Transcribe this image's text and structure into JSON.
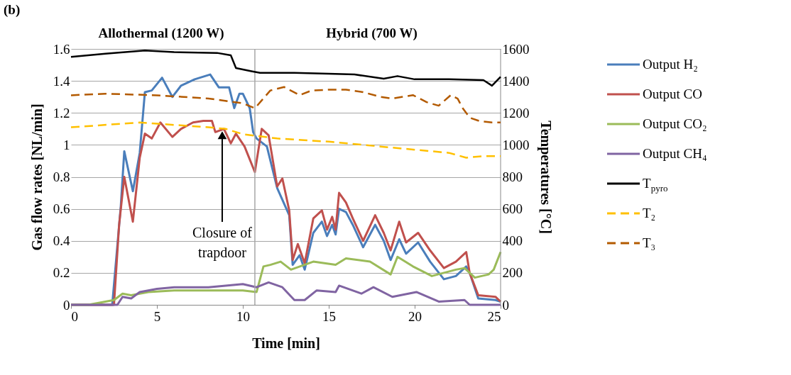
{
  "chart_data": {
    "type": "line",
    "xlabel": "Time [min]",
    "ylabel": "Gas flow rates [NL/min]",
    "y2label": "Temperatures [°C]",
    "xlim": [
      0,
      25
    ],
    "xticks": [
      0,
      5,
      10,
      15,
      20,
      25
    ],
    "ylim": [
      0,
      1.6
    ],
    "yticks": [
      0,
      0.2,
      0.4,
      0.6,
      0.8,
      1,
      1.2,
      1.4,
      1.6
    ],
    "y2lim": [
      0,
      1600
    ],
    "y2ticks": [
      0,
      200,
      400,
      600,
      800,
      1000,
      1200,
      1400,
      1600
    ],
    "grid": "y",
    "legend": "right",
    "marker": "none",
    "annotations": [
      "(b)",
      "Allothermal (1200 W)",
      "Hybrid (700 W)",
      {
        "text": "Closure of\ntrapdoor",
        "x": 8.8,
        "y": 1.08
      }
    ],
    "ref_lines": [
      {
        "axis": "x",
        "value": 10.7,
        "color": "#a6a6a6"
      }
    ],
    "series": [
      {
        "name": "Output H₂",
        "color": "#4a7ebb",
        "line_style": "solid",
        "x": [
          0,
          2.4,
          2.9,
          3.1,
          3.6,
          4.0,
          4.3,
          4.7,
          5.3,
          5.9,
          6.4,
          7.2,
          8.1,
          8.6,
          9.2,
          9.5,
          9.8,
          10.0,
          10.4,
          10.6,
          10.8,
          11.4,
          12.0,
          12.7,
          12.9,
          13.3,
          13.6,
          14.1,
          14.6,
          14.9,
          15.2,
          15.4,
          15.6,
          16.0,
          16.4,
          17.0,
          17.7,
          18.2,
          18.6,
          19.1,
          19.5,
          20.2,
          20.9,
          21.7,
          22.4,
          23.0,
          23.2,
          23.7,
          24.7,
          25
        ],
        "values": [
          0,
          0,
          0.62,
          0.96,
          0.71,
          0.95,
          1.33,
          1.34,
          1.42,
          1.3,
          1.37,
          1.41,
          1.44,
          1.36,
          1.36,
          1.23,
          1.32,
          1.32,
          1.23,
          1.08,
          1.04,
          0.99,
          0.73,
          0.56,
          0.25,
          0.31,
          0.22,
          0.45,
          0.52,
          0.43,
          0.5,
          0.44,
          0.6,
          0.58,
          0.5,
          0.36,
          0.5,
          0.4,
          0.28,
          0.41,
          0.32,
          0.39,
          0.27,
          0.16,
          0.18,
          0.24,
          0.2,
          0.04,
          0.03,
          0.02
        ]
      },
      {
        "name": "Output CO",
        "color": "#c0504d",
        "line_style": "solid",
        "x": [
          0,
          2.5,
          2.8,
          3.1,
          3.6,
          4.0,
          4.3,
          4.7,
          5.2,
          5.9,
          6.4,
          7.1,
          7.7,
          8.2,
          8.4,
          8.9,
          9.3,
          9.6,
          10.1,
          10.7,
          11.1,
          11.5,
          12.0,
          12.3,
          12.7,
          12.9,
          13.2,
          13.6,
          14.1,
          14.6,
          14.9,
          15.2,
          15.4,
          15.6,
          16.0,
          16.4,
          17.0,
          17.7,
          18.2,
          18.6,
          19.1,
          19.5,
          20.2,
          20.9,
          21.7,
          22.4,
          23.0,
          23.2,
          23.7,
          24.7,
          25
        ],
        "values": [
          0,
          0,
          0.5,
          0.8,
          0.52,
          0.92,
          1.07,
          1.04,
          1.14,
          1.05,
          1.1,
          1.14,
          1.15,
          1.15,
          1.08,
          1.1,
          1.01,
          1.07,
          0.99,
          0.83,
          1.1,
          1.06,
          0.74,
          0.79,
          0.59,
          0.28,
          0.38,
          0.26,
          0.54,
          0.59,
          0.47,
          0.55,
          0.47,
          0.7,
          0.64,
          0.54,
          0.4,
          0.56,
          0.45,
          0.34,
          0.52,
          0.39,
          0.45,
          0.34,
          0.23,
          0.27,
          0.33,
          0.2,
          0.06,
          0.05,
          0.02
        ]
      },
      {
        "name": "Output CO₂",
        "color": "#9bbb59",
        "line_style": "solid",
        "x": [
          0,
          1.0,
          1.5,
          2.5,
          3.0,
          3.5,
          4.5,
          6.0,
          8.0,
          10.0,
          10.8,
          11.2,
          11.6,
          12.2,
          12.8,
          14.1,
          15.4,
          16.0,
          17.4,
          18.6,
          19.0,
          19.9,
          21.0,
          22.4,
          22.9,
          23.5,
          24.3,
          24.6,
          25
        ],
        "values": [
          0,
          0,
          0.01,
          0.03,
          0.07,
          0.06,
          0.08,
          0.09,
          0.09,
          0.09,
          0.08,
          0.24,
          0.25,
          0.27,
          0.22,
          0.27,
          0.25,
          0.29,
          0.27,
          0.19,
          0.3,
          0.24,
          0.18,
          0.22,
          0.23,
          0.17,
          0.19,
          0.22,
          0.33
        ]
      },
      {
        "name": "Output CH₄",
        "color": "#8064a2",
        "line_style": "solid",
        "x": [
          0,
          2.7,
          3.0,
          3.5,
          4.0,
          5.0,
          6.0,
          8.0,
          10.0,
          10.8,
          11.5,
          12.3,
          13.0,
          13.6,
          14.3,
          15.4,
          15.6,
          16.9,
          17.6,
          18.7,
          20.1,
          21.4,
          22.9,
          23.2,
          25
        ],
        "values": [
          0,
          0,
          0.05,
          0.04,
          0.08,
          0.1,
          0.11,
          0.11,
          0.13,
          0.11,
          0.14,
          0.11,
          0.03,
          0.03,
          0.09,
          0.08,
          0.12,
          0.07,
          0.11,
          0.05,
          0.08,
          0.02,
          0.03,
          0.0,
          0.0
        ]
      },
      {
        "name": "T$_{pyro}$",
        "color": "#000000",
        "line_style": "solid",
        "axis": "y2",
        "x": [
          0,
          2,
          4.3,
          6,
          8.5,
          9.3,
          9.6,
          10.5,
          11,
          13,
          15,
          16.5,
          18.2,
          19,
          20,
          22,
          24,
          24.5,
          25
        ],
        "values": [
          1550,
          1570,
          1590,
          1580,
          1575,
          1560,
          1480,
          1460,
          1450,
          1450,
          1445,
          1440,
          1414,
          1430,
          1410,
          1410,
          1405,
          1370,
          1425
        ]
      },
      {
        "name": "T₂",
        "color": "#ffc000",
        "line_style": "dashed",
        "axis": "y2",
        "x": [
          0,
          4,
          8,
          9,
          10,
          12,
          15,
          18,
          20,
          22,
          23,
          24,
          25
        ],
        "values": [
          1110,
          1140,
          1110,
          1100,
          1067,
          1040,
          1020,
          990,
          970,
          950,
          920,
          930,
          930
        ]
      },
      {
        "name": "T₃",
        "color": "#b35a00",
        "line_style": "dashed",
        "axis": "y2",
        "x": [
          0,
          2,
          5,
          8,
          10,
          10.7,
          11.6,
          12.4,
          13.3,
          14,
          15,
          16,
          17,
          18,
          18.7,
          19.9,
          20.7,
          21.4,
          22.1,
          22.5,
          22.8,
          23.2,
          23.8,
          24.5,
          25
        ],
        "values": [
          1310,
          1320,
          1310,
          1290,
          1260,
          1229,
          1340,
          1362,
          1311,
          1340,
          1345,
          1345,
          1330,
          1300,
          1290,
          1311,
          1267,
          1245,
          1311,
          1289,
          1229,
          1170,
          1148,
          1140,
          1140
        ]
      }
    ]
  }
}
